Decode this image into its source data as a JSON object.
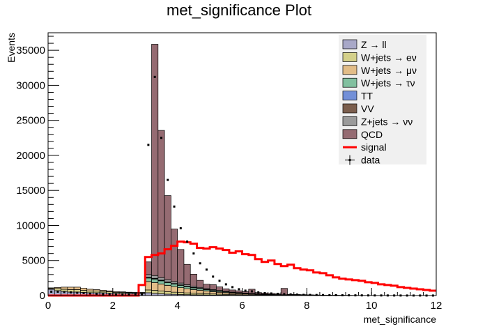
{
  "chart_data": {
    "type": "bar",
    "title": "met_significance Plot",
    "xlabel": "met_significance",
    "ylabel": "Events",
    "xlim": [
      0,
      12
    ],
    "ylim": [
      0,
      37500
    ],
    "x_ticks": [
      0,
      2,
      4,
      6,
      8,
      10,
      12
    ],
    "y_ticks": [
      0,
      5000,
      10000,
      15000,
      20000,
      25000,
      30000,
      35000
    ],
    "bin_width": 0.2,
    "legend_position": "top-right",
    "stacked": true,
    "bin_edges": [
      0,
      0.2,
      0.4,
      0.6,
      0.8,
      1.0,
      1.2,
      1.4,
      1.6,
      1.8,
      2.0,
      2.2,
      2.4,
      2.6,
      2.8,
      3.0,
      3.2,
      3.4,
      3.6,
      3.8,
      4.0,
      4.2,
      4.4,
      4.6,
      4.8,
      5.0,
      5.2,
      5.4,
      5.6,
      5.8,
      6.0,
      6.2,
      6.4,
      6.6,
      6.8,
      7.0,
      7.2,
      7.4,
      7.6,
      7.8,
      8.0,
      8.2,
      8.4,
      8.6,
      8.8,
      9.0,
      9.2,
      9.4,
      9.6,
      9.8,
      10.0,
      10.2,
      10.4,
      10.6,
      10.8,
      11.0,
      11.2,
      11.4,
      11.6,
      11.8,
      12.0
    ],
    "series": [
      {
        "name": "Z → ll",
        "color": "#a8a8c8",
        "values": [
          900,
          700,
          600,
          500,
          500,
          450,
          400,
          400,
          400,
          350,
          300,
          300,
          300,
          300,
          300,
          400,
          300,
          250,
          200,
          180,
          150,
          130,
          110,
          100,
          90,
          80,
          70,
          60,
          50,
          45,
          40,
          35,
          30,
          25,
          22,
          20,
          18,
          15,
          12,
          10,
          9,
          8,
          7,
          6,
          5,
          5,
          4,
          4,
          3,
          3,
          3,
          2,
          2,
          2,
          2,
          1,
          1,
          1,
          1,
          1
        ]
      },
      {
        "name": "W+jets → eν",
        "color": "#d4d08a",
        "values": [
          200,
          300,
          300,
          350,
          350,
          300,
          250,
          250,
          200,
          200,
          150,
          150,
          120,
          100,
          100,
          400,
          450,
          400,
          350,
          300,
          280,
          250,
          220,
          200,
          180,
          150,
          130,
          110,
          90,
          80,
          70,
          60,
          50,
          45,
          40,
          35,
          30,
          25,
          22,
          20,
          18,
          15,
          12,
          10,
          9,
          8,
          7,
          6,
          5,
          5,
          4,
          4,
          3,
          3,
          2,
          2,
          2,
          1,
          1,
          1
        ]
      },
      {
        "name": "W+jets → μν",
        "color": "#e2bd88",
        "values": [
          0,
          150,
          300,
          350,
          350,
          300,
          250,
          200,
          150,
          120,
          100,
          80,
          60,
          50,
          50,
          1200,
          1100,
          1000,
          900,
          800,
          700,
          600,
          520,
          450,
          380,
          320,
          270,
          220,
          180,
          150,
          120,
          100,
          80,
          65,
          55,
          45,
          38,
          30,
          25,
          20,
          16,
          13,
          10,
          8,
          6,
          5,
          4,
          3,
          3,
          2,
          2,
          2,
          1,
          1,
          1,
          1,
          1,
          1,
          1,
          1
        ]
      },
      {
        "name": "W+jets → τν",
        "color": "#82c0a0",
        "values": [
          0,
          0,
          0,
          0,
          0,
          0,
          0,
          0,
          0,
          0,
          0,
          0,
          0,
          0,
          0,
          500,
          500,
          450,
          400,
          350,
          320,
          280,
          240,
          200,
          170,
          140,
          115,
          95,
          78,
          64,
          52,
          42,
          34,
          28,
          22,
          18,
          14,
          11,
          9,
          7,
          5,
          4,
          3,
          3,
          2,
          2,
          1,
          1,
          1,
          1,
          1,
          0,
          0,
          0,
          0,
          0,
          0,
          0,
          0,
          0
        ]
      },
      {
        "name": "TT",
        "color": "#7390d8",
        "values": [
          0,
          0,
          0,
          0,
          0,
          0,
          0,
          0,
          0,
          0,
          0,
          0,
          0,
          0,
          0,
          40,
          40,
          38,
          35,
          32,
          30,
          28,
          25,
          22,
          20,
          18,
          16,
          14,
          12,
          10,
          9,
          8,
          7,
          6,
          5,
          4,
          3,
          3,
          2,
          2,
          2,
          1,
          1,
          1,
          1,
          1,
          1,
          0,
          0,
          0,
          0,
          0,
          0,
          0,
          0,
          0,
          0,
          0,
          0,
          0
        ]
      },
      {
        "name": "VV",
        "color": "#7b5e4d",
        "values": [
          0,
          0,
          0,
          0,
          0,
          0,
          0,
          0,
          0,
          0,
          0,
          0,
          0,
          0,
          0,
          60,
          70,
          65,
          60,
          55,
          50,
          46,
          42,
          38,
          34,
          30,
          27,
          24,
          21,
          18,
          16,
          14,
          12,
          10,
          9,
          8,
          7,
          6,
          5,
          4,
          3,
          3,
          2,
          2,
          2,
          1,
          1,
          1,
          1,
          1,
          0,
          0,
          0,
          0,
          0,
          0,
          0,
          0,
          0,
          0
        ]
      },
      {
        "name": "Z+jets → νν",
        "color": "#9b9b9b",
        "values": [
          0,
          0,
          0,
          0,
          0,
          0,
          0,
          0,
          0,
          0,
          0,
          0,
          0,
          0,
          0,
          400,
          400,
          360,
          320,
          280,
          250,
          220,
          190,
          160,
          140,
          120,
          100,
          85,
          70,
          60,
          50,
          42,
          35,
          28,
          23,
          19,
          15,
          12,
          10,
          8,
          6,
          5,
          4,
          3,
          3,
          2,
          2,
          1,
          1,
          1,
          1,
          1,
          1,
          0,
          0,
          0,
          0,
          0,
          0,
          0
        ]
      },
      {
        "name": "QCD",
        "color": "#956b72",
        "values": [
          0,
          0,
          0,
          0,
          0,
          0,
          0,
          0,
          0,
          0,
          0,
          0,
          0,
          0,
          0,
          1800,
          33000,
          21000,
          12000,
          7500,
          4800,
          2900,
          1700,
          1000,
          600,
          700,
          500,
          350,
          300,
          250,
          200,
          600,
          180,
          150,
          120,
          100,
          900,
          80,
          70,
          60,
          50,
          40,
          30,
          25,
          20,
          15,
          12,
          10,
          8,
          6,
          5,
          4,
          3,
          2,
          2,
          1,
          1,
          1,
          1,
          1
        ]
      }
    ],
    "signal": {
      "name": "signal",
      "color": "#ff0000",
      "values": [
        0,
        0,
        0,
        0,
        0,
        0,
        0,
        0,
        0,
        0,
        0,
        0,
        0,
        0,
        1500,
        5500,
        5800,
        6000,
        6600,
        7100,
        7700,
        7600,
        7400,
        6800,
        6700,
        6900,
        6700,
        6500,
        6100,
        6300,
        5900,
        5800,
        5200,
        4800,
        5000,
        4500,
        4200,
        4400,
        3900,
        3700,
        3600,
        3300,
        3200,
        2900,
        2600,
        2400,
        2300,
        2200,
        2100,
        1900,
        1800,
        1600,
        1500,
        1400,
        1200,
        1100,
        1000,
        900,
        800,
        700
      ]
    },
    "data": {
      "name": "data",
      "values": [
        550,
        550,
        500,
        450,
        400,
        350,
        300,
        250,
        200,
        200,
        200,
        200,
        200,
        200,
        200,
        21500,
        31200,
        22500,
        16500,
        12700,
        9600,
        7700,
        6000,
        4600,
        3700,
        2700,
        2100,
        1600,
        1200,
        900,
        700,
        600,
        450,
        350,
        300,
        250,
        200,
        160,
        130,
        100,
        90,
        80,
        70,
        60,
        50,
        40,
        35,
        30,
        25,
        20,
        18,
        15,
        12,
        10,
        8,
        6,
        5,
        4,
        3,
        2
      ]
    }
  }
}
